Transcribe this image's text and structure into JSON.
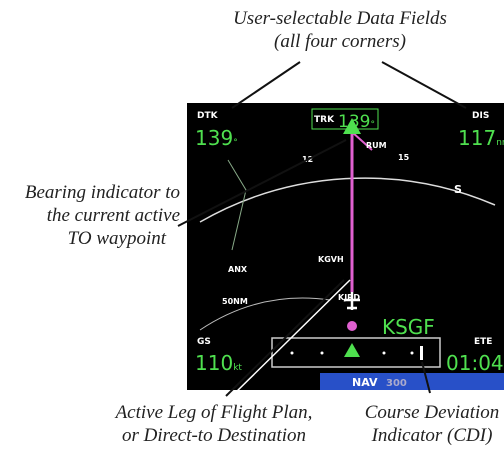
{
  "callouts": {
    "data_fields": [
      "User-selectable Data Fields",
      "(all four corners)"
    ],
    "bearing": [
      "Bearing indicator to",
      "the current active",
      "TO waypoint"
    ],
    "active_leg": [
      "Active Leg of Flight Plan,",
      "or Direct-to Destination"
    ],
    "cdi": [
      "Course Deviation",
      "Indicator (CDI)"
    ]
  },
  "screen": {
    "fields": [
      {
        "label": "DTK",
        "value": "139",
        "unit": "°"
      },
      {
        "label": "TRK",
        "value": "139",
        "unit": "°"
      },
      {
        "label": "DIS",
        "value": "117",
        "unit": "nm"
      },
      {
        "label": "GS",
        "value": "110",
        "unit": "kt"
      },
      {
        "label": "ETE",
        "value": "01:04"
      }
    ],
    "destination": "KSGF",
    "map_labels": [
      "RUM",
      "KGVH",
      "ANX",
      "KJRD",
      "50NM",
      "12",
      "15",
      "S"
    ],
    "mode": "NAV",
    "range": "300"
  }
}
